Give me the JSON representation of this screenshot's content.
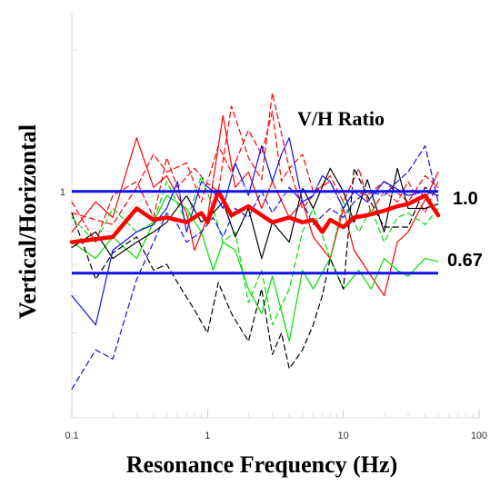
{
  "chart_data": {
    "type": "line",
    "title": "V/H Ratio",
    "xlabel": "Resonance Frequency (Hz)",
    "ylabel": "Vertical/Horizontal",
    "xscale": "log",
    "yscale": "log",
    "xlim": [
      0.1,
      100
    ],
    "ylim": [
      0.33,
      2.4
    ],
    "grid": false,
    "legend": "none",
    "x_ticks": [
      {
        "value": 0.1,
        "label": "0.1"
      },
      {
        "value": 1,
        "label": "1"
      },
      {
        "value": 10,
        "label": "10"
      },
      {
        "value": 100,
        "label": "100"
      }
    ],
    "y_ticks": [
      {
        "value": 1,
        "label": "1"
      }
    ],
    "reference_lines": [
      {
        "value": 1.0,
        "label": "1.0",
        "color": "#1010ee"
      },
      {
        "value": 0.67,
        "label": "0.67",
        "color": "#1010ee"
      }
    ],
    "series": [
      {
        "color": "#ff0000",
        "dash": "solid",
        "width": 4.5,
        "x": [
          0.1,
          0.2,
          0.3,
          0.4,
          0.5,
          0.7,
          0.9,
          1.0,
          1.2,
          1.5,
          2.0,
          2.5,
          3.0,
          4.0,
          5.0,
          6.0,
          7.0,
          8.0,
          10,
          12,
          15,
          20,
          25,
          30,
          40,
          50
        ],
        "y": [
          0.78,
          0.8,
          0.92,
          0.87,
          0.88,
          0.86,
          0.9,
          0.86,
          1.0,
          0.89,
          0.93,
          0.89,
          0.86,
          0.88,
          0.86,
          0.87,
          0.82,
          0.87,
          0.84,
          0.88,
          0.89,
          0.91,
          0.93,
          0.94,
          0.98,
          0.89
        ]
      },
      {
        "color": "#ff0000",
        "dash": "solid",
        "width": 1.2,
        "x": [
          0.1,
          0.15,
          0.2,
          0.3,
          0.4,
          0.5,
          0.6,
          0.7,
          0.8,
          1.0,
          1.3,
          1.6,
          2.0,
          2.5,
          3.0,
          4.0,
          5.0,
          6.0,
          8.0,
          10,
          12,
          15,
          20,
          25,
          30,
          40,
          50
        ],
        "y": [
          0.82,
          0.95,
          0.88,
          1.3,
          1.02,
          1.08,
          0.98,
          0.9,
          0.75,
          0.88,
          1.45,
          1.02,
          1.1,
          0.92,
          1.05,
          0.88,
          0.95,
          0.8,
          0.72,
          0.92,
          0.75,
          0.68,
          0.6,
          0.78,
          0.82,
          0.96,
          1.1
        ]
      },
      {
        "color": "#ff0000",
        "dash": "dashed",
        "width": 1.2,
        "x": [
          0.1,
          0.15,
          0.2,
          0.3,
          0.4,
          0.5,
          0.6,
          0.8,
          1.0,
          1.2,
          1.5,
          2.0,
          2.5,
          3.0,
          4.0,
          5.0,
          6.0,
          8.0,
          10,
          12,
          15,
          20,
          30,
          40,
          50
        ],
        "y": [
          0.95,
          0.78,
          0.98,
          1.05,
          0.88,
          1.18,
          1.02,
          1.12,
          1.04,
          1.0,
          1.52,
          1.18,
          1.06,
          1.62,
          1.12,
          1.2,
          1.0,
          1.05,
          0.92,
          1.0,
          0.98,
          1.05,
          0.95,
          1.08,
          1.02
        ]
      },
      {
        "color": "#ff0000",
        "dash": "dashed",
        "width": 1.2,
        "x": [
          0.1,
          0.2,
          0.3,
          0.4,
          0.5,
          0.7,
          0.9,
          1.2,
          1.5,
          2.0,
          2.5,
          3.0,
          3.5,
          4.0,
          5.0,
          6.0,
          8.0,
          10,
          13,
          16,
          20,
          25,
          30,
          40,
          50
        ],
        "y": [
          0.9,
          0.85,
          1.02,
          1.2,
          1.1,
          1.15,
          0.95,
          1.25,
          1.1,
          1.35,
          1.2,
          1.48,
          1.05,
          1.12,
          0.92,
          0.98,
          1.08,
          0.95,
          1.12,
          0.9,
          1.0,
          0.95,
          1.05,
          0.9,
          1.05
        ]
      },
      {
        "color": "#00dd00",
        "dash": "solid",
        "width": 1.2,
        "x": [
          0.1,
          0.15,
          0.2,
          0.3,
          0.4,
          0.5,
          0.7,
          0.9,
          1.1,
          1.3,
          1.6,
          2.0,
          2.5,
          3.0,
          4.0,
          5.0,
          6.0,
          8.0,
          10,
          13,
          16,
          20,
          25,
          30,
          40,
          50
        ],
        "y": [
          0.78,
          0.72,
          0.8,
          0.72,
          0.86,
          0.98,
          0.92,
          0.82,
          0.68,
          0.78,
          0.75,
          0.62,
          0.55,
          0.66,
          0.48,
          0.68,
          0.62,
          0.72,
          0.62,
          0.68,
          0.62,
          0.72,
          0.68,
          0.66,
          0.72,
          0.71
        ]
      },
      {
        "color": "#00dd00",
        "dash": "dashed",
        "width": 1.2,
        "x": [
          0.1,
          0.15,
          0.2,
          0.3,
          0.4,
          0.5,
          0.7,
          0.9,
          1.1,
          1.3,
          1.6,
          2.0,
          2.5,
          3.0,
          4.0,
          5.0,
          6.0,
          8.0,
          10,
          13,
          16,
          20,
          25,
          30,
          40,
          50
        ],
        "y": [
          0.88,
          0.78,
          0.92,
          0.82,
          0.86,
          1.05,
          0.86,
          1.08,
          0.92,
          0.78,
          0.82,
          0.58,
          0.68,
          0.52,
          0.62,
          0.82,
          0.92,
          0.72,
          0.95,
          0.82,
          0.92,
          0.78,
          0.88,
          0.9,
          0.85,
          0.92
        ]
      },
      {
        "color": "#000000",
        "dash": "solid",
        "width": 1.2,
        "x": [
          0.1,
          0.15,
          0.2,
          0.3,
          0.4,
          0.5,
          0.7,
          0.9,
          1.1,
          1.3,
          1.6,
          2.0,
          2.5,
          3.0,
          4.0,
          5.0,
          6.0,
          8.0,
          10,
          12,
          15,
          20,
          25,
          30,
          40,
          50
        ],
        "y": [
          0.76,
          0.82,
          0.72,
          0.78,
          0.82,
          0.86,
          0.98,
          0.86,
          0.9,
          0.95,
          0.8,
          0.92,
          0.72,
          0.86,
          0.78,
          1.02,
          0.92,
          1.12,
          1.0,
          0.86,
          1.06,
          0.82,
          1.12,
          0.92,
          0.92,
          0.94
        ]
      },
      {
        "color": "#000000",
        "dash": "dashed",
        "width": 1.2,
        "x": [
          0.1,
          0.15,
          0.2,
          0.3,
          0.4,
          0.5,
          0.6,
          0.8,
          1.0,
          1.2,
          1.5,
          2.0,
          2.5,
          3.0,
          3.5,
          4.0,
          5.0,
          6.0,
          7.0,
          8.0,
          10,
          12,
          15,
          20,
          30,
          40,
          50
        ],
        "y": [
          0.9,
          0.65,
          0.74,
          0.8,
          0.68,
          0.7,
          0.64,
          0.56,
          0.5,
          0.64,
          0.55,
          0.48,
          0.62,
          0.45,
          0.5,
          0.42,
          0.46,
          0.52,
          0.6,
          0.72,
          0.62,
          1.12,
          0.98,
          0.84,
          0.84,
          1.02,
          0.98
        ]
      },
      {
        "color": "#1010ee",
        "dash": "solid",
        "width": 1.2,
        "x": [
          0.1,
          0.15,
          0.2,
          0.3,
          0.4,
          0.5,
          0.6,
          0.7,
          0.9,
          1.1,
          1.3,
          1.6,
          2.0,
          2.5,
          3.0,
          3.5,
          4.0,
          5.0,
          6.0,
          7.0,
          8.0,
          10,
          12,
          15,
          20,
          30,
          40,
          50
        ],
        "y": [
          0.6,
          0.52,
          0.75,
          0.82,
          0.85,
          0.92,
          1.05,
          0.82,
          1.05,
          1.0,
          0.92,
          1.15,
          0.98,
          1.25,
          1.05,
          1.2,
          1.3,
          0.95,
          0.98,
          1.08,
          1.05,
          0.92,
          1.0,
          0.95,
          1.05,
          0.98,
          1.0,
          0.98
        ]
      },
      {
        "color": "#1010ee",
        "dash": "dashed",
        "width": 1.2,
        "x": [
          0.1,
          0.15,
          0.2,
          0.3,
          0.4,
          0.5,
          0.6,
          0.7,
          0.9,
          1.1,
          1.3,
          1.6,
          2.0,
          2.5,
          3.0,
          4.0,
          5.0,
          6.0,
          8.0,
          10,
          12,
          15,
          20,
          25,
          30,
          40,
          50
        ],
        "y": [
          0.38,
          0.46,
          0.44,
          0.65,
          0.78,
          0.9,
          0.85,
          0.78,
          0.82,
          0.88,
          0.8,
          0.92,
          0.88,
          1.0,
          0.9,
          1.02,
          0.95,
          0.85,
          0.92,
          0.88,
          0.95,
          1.0,
          0.98,
          1.05,
          1.1,
          1.25,
          0.95
        ]
      },
      {
        "color": "#dddddd",
        "dash": "solid",
        "width": 1.2,
        "x": [
          0.1,
          0.2,
          0.3,
          0.5,
          0.7,
          1.0,
          1.5,
          2.0,
          3.0,
          4.0,
          6.0,
          8.0,
          10,
          15,
          20,
          30,
          50
        ],
        "y": [
          0.85,
          0.82,
          0.95,
          1.0,
          0.98,
          1.05,
          1.1,
          1.0,
          1.02,
          0.98,
          1.05,
          0.96,
          1.0,
          1.02,
          0.98,
          1.0,
          1.0
        ]
      }
    ]
  }
}
